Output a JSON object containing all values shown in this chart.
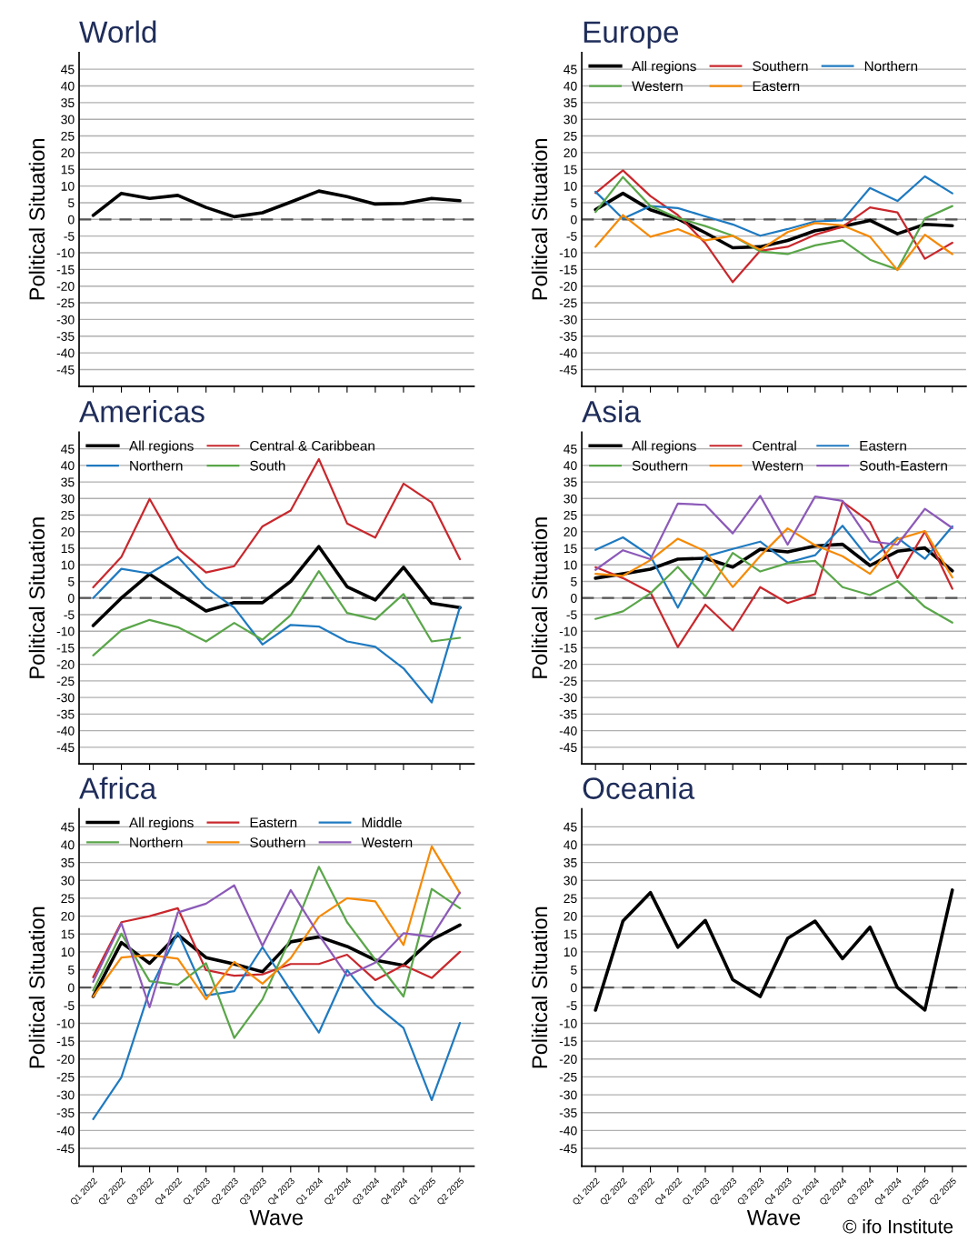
{
  "chart_data": [
    {
      "type": "line",
      "title": "World",
      "ylabel": "Political Situation",
      "categories": [
        null,
        null,
        null,
        null,
        null,
        null,
        null,
        null,
        null,
        null,
        null,
        null,
        null,
        null
      ],
      "ylim": [
        -50,
        50
      ],
      "yticks": [
        -45,
        -40,
        -35,
        -30,
        -25,
        -20,
        -15,
        -10,
        -5,
        0,
        5,
        10,
        15,
        20,
        25,
        30,
        35,
        40,
        45
      ],
      "grid": "y",
      "tick_labels": "y",
      "legend": false,
      "ref_lines": [
        {
          "axis": "y",
          "value": 0,
          "color": "#555555",
          "line_style": "dashed"
        }
      ],
      "series": [
        {
          "color": "#000000",
          "values": [
            1.2,
            7.8,
            6.3,
            7.2,
            3.6,
            0.8,
            2.0,
            5.2,
            8.5,
            6.8,
            4.6,
            4.8,
            6.3,
            5.6
          ]
        }
      ]
    },
    {
      "type": "line",
      "title": "Europe",
      "ylabel": "Political Situation",
      "categories": [
        null,
        null,
        null,
        null,
        null,
        null,
        null,
        null,
        null,
        null,
        null,
        null,
        null,
        null
      ],
      "ylim": [
        -50,
        50
      ],
      "yticks": [
        -45,
        -40,
        -35,
        -30,
        -25,
        -20,
        -15,
        -10,
        -5,
        0,
        5,
        10,
        15,
        20,
        25,
        30,
        35,
        40,
        45
      ],
      "grid": "y",
      "tick_labels": "y",
      "legend": "top left",
      "ref_lines": [
        {
          "axis": "y",
          "value": 0,
          "color": "#555555",
          "line_style": "dashed"
        }
      ],
      "series": [
        {
          "name": "All regions",
          "color": "#000000",
          "values": [
            2.9,
            7.8,
            2.9,
            0.2,
            -4.0,
            -8.5,
            -8.2,
            -6.3,
            -3.4,
            -2.1,
            -0.3,
            -4.3,
            -1.5,
            -1.9
          ]
        },
        {
          "name": "Southern",
          "color": "#c8282d",
          "values": [
            7.9,
            14.7,
            7.0,
            1.3,
            -7.1,
            -18.8,
            -9.4,
            -8.2,
            -4.6,
            -2.2,
            3.6,
            2.1,
            -11.8,
            -7.0
          ]
        },
        {
          "name": "Northern",
          "color": "#1f7ac0",
          "values": [
            8.3,
            0.2,
            4.0,
            3.4,
            0.9,
            -1.5,
            -4.9,
            -2.9,
            -0.6,
            -0.3,
            9.4,
            5.5,
            12.9,
            7.8
          ]
        },
        {
          "name": "Western",
          "color": "#5aa64a",
          "values": [
            2.2,
            12.7,
            4.0,
            0.4,
            -2.0,
            -4.9,
            -9.6,
            -10.4,
            -7.8,
            -6.3,
            -12.1,
            -15.0,
            0.3,
            4.0
          ]
        },
        {
          "name": "Eastern",
          "color": "#f58a07",
          "values": [
            -8.2,
            1.3,
            -5.2,
            -2.9,
            -6.3,
            -4.9,
            -9.1,
            -3.8,
            -1.1,
            -1.8,
            -5.2,
            -15.2,
            -4.6,
            -10.4
          ]
        }
      ]
    },
    {
      "type": "line",
      "title": "Americas",
      "ylabel": "Political Situation",
      "categories": [
        null,
        null,
        null,
        null,
        null,
        null,
        null,
        null,
        null,
        null,
        null,
        null,
        null,
        null
      ],
      "ylim": [
        -50,
        50
      ],
      "yticks": [
        -45,
        -40,
        -35,
        -30,
        -25,
        -20,
        -15,
        -10,
        -5,
        0,
        5,
        10,
        15,
        20,
        25,
        30,
        35,
        40,
        45
      ],
      "grid": "y",
      "tick_labels": "y",
      "legend": "top left",
      "ref_lines": [
        {
          "axis": "y",
          "value": 0,
          "color": "#555555",
          "line_style": "dashed"
        }
      ],
      "series": [
        {
          "name": "All regions",
          "color": "#000000",
          "values": [
            -8.3,
            0.0,
            7.2,
            1.6,
            -3.9,
            -1.4,
            -1.4,
            5.0,
            15.5,
            3.4,
            -0.6,
            9.3,
            -1.6,
            -2.9
          ]
        },
        {
          "name": "Central & Caribbean",
          "color": "#c8282d",
          "values": [
            3.2,
            12.4,
            29.9,
            14.9,
            7.7,
            9.6,
            21.6,
            26.4,
            41.9,
            22.5,
            18.2,
            34.5,
            28.8,
            11.7
          ]
        },
        {
          "name": "Northern",
          "color": "#1f7ac0",
          "values": [
            0.0,
            8.8,
            7.4,
            12.4,
            3.2,
            -2.9,
            -14.0,
            -8.1,
            -8.6,
            -13.1,
            -14.7,
            -21.2,
            -31.5,
            -2.7
          ]
        },
        {
          "name": "South",
          "color": "#5aa64a",
          "values": [
            -17.3,
            -9.7,
            -6.6,
            -8.8,
            -13.1,
            -7.5,
            -12.6,
            -5.2,
            8.1,
            -4.5,
            -6.5,
            1.2,
            -13.1,
            -12.0
          ]
        }
      ]
    },
    {
      "type": "line",
      "title": "Asia",
      "ylabel": "Political Situation",
      "categories": [
        null,
        null,
        null,
        null,
        null,
        null,
        null,
        null,
        null,
        null,
        null,
        null,
        null,
        null
      ],
      "ylim": [
        -50,
        50
      ],
      "yticks": [
        -45,
        -40,
        -35,
        -30,
        -25,
        -20,
        -15,
        -10,
        -5,
        0,
        5,
        10,
        15,
        20,
        25,
        30,
        35,
        40,
        45
      ],
      "grid": "y",
      "tick_labels": "y",
      "legend": "top left",
      "ref_lines": [
        {
          "axis": "y",
          "value": 0,
          "color": "#555555",
          "line_style": "dashed"
        }
      ],
      "series": [
        {
          "name": "All regions",
          "color": "#000000",
          "values": [
            6.0,
            7.3,
            8.7,
            11.7,
            12.0,
            9.3,
            14.7,
            13.9,
            15.7,
            16.2,
            9.8,
            14.1,
            15.1,
            8.2
          ]
        },
        {
          "name": "Central",
          "color": "#c8282d",
          "values": [
            9.3,
            6.0,
            1.7,
            -14.8,
            -2.0,
            -9.8,
            3.3,
            -1.5,
            1.2,
            29.0,
            22.9,
            6.0,
            20.0,
            2.8
          ]
        },
        {
          "name": "Eastern",
          "color": "#1f7ac0",
          "values": [
            14.5,
            18.3,
            12.7,
            -2.9,
            12.5,
            14.8,
            17.0,
            10.7,
            12.9,
            21.8,
            11.4,
            18.2,
            11.8,
            21.6
          ]
        },
        {
          "name": "Southern",
          "color": "#5aa64a",
          "values": [
            -6.3,
            -4.0,
            1.4,
            9.4,
            0.4,
            13.6,
            8.0,
            10.5,
            11.2,
            3.3,
            0.9,
            5.1,
            -2.7,
            -7.4
          ]
        },
        {
          "name": "Western",
          "color": "#f58a07",
          "values": [
            7.3,
            6.7,
            11.4,
            17.9,
            14.1,
            3.3,
            12.7,
            21.0,
            15.9,
            12.6,
            7.3,
            17.7,
            20.2,
            6.2
          ]
        },
        {
          "name": "South-Eastern",
          "color": "#8c5ab8",
          "values": [
            8.5,
            14.4,
            11.7,
            28.5,
            28.1,
            19.5,
            30.8,
            16.1,
            30.6,
            29.3,
            17.1,
            16.1,
            26.9,
            21.1
          ]
        }
      ]
    },
    {
      "type": "line",
      "title": "Africa",
      "ylabel": "Political Situation",
      "xlabel": "Wave",
      "categories": [
        "Q1 2022",
        "Q2 2022",
        "Q3 2022",
        "Q4 2022",
        "Q1 2023",
        "Q2 2023",
        "Q3 2023",
        "Q4 2023",
        "Q1 2024",
        "Q2 2024",
        "Q3 2024",
        "Q4 2024",
        "Q1 2025",
        "Q2 2025"
      ],
      "ylim": [
        -50,
        50
      ],
      "yticks": [
        -45,
        -40,
        -35,
        -30,
        -25,
        -20,
        -15,
        -10,
        -5,
        0,
        5,
        10,
        15,
        20,
        25,
        30,
        35,
        40,
        45
      ],
      "grid": "y",
      "legend": "top left",
      "ref_lines": [
        {
          "axis": "y",
          "value": 0,
          "color": "#555555",
          "line_style": "dashed"
        }
      ],
      "series": [
        {
          "name": "All regions",
          "color": "#000000",
          "values": [
            -2.5,
            12.6,
            6.8,
            14.8,
            8.4,
            6.6,
            4.4,
            12.8,
            14.2,
            11.5,
            7.7,
            6.2,
            13.4,
            17.5
          ]
        },
        {
          "name": "Eastern",
          "color": "#c8282d",
          "values": [
            2.9,
            18.3,
            20.0,
            22.2,
            4.9,
            3.3,
            3.7,
            6.6,
            6.6,
            9.2,
            2.1,
            6.3,
            2.7,
            10.0
          ]
        },
        {
          "name": "Middle",
          "color": "#1f7ac0",
          "values": [
            -36.8,
            -25.1,
            -0.8,
            15.4,
            -2.2,
            -1.0,
            11.3,
            -0.8,
            -12.6,
            4.9,
            -4.8,
            -11.3,
            -31.5,
            -9.9
          ]
        },
        {
          "name": "Northern",
          "color": "#5aa64a",
          "values": [
            -0.8,
            15.1,
            1.8,
            0.8,
            6.8,
            -14.1,
            -3.3,
            14.0,
            33.8,
            18.3,
            7.8,
            -2.5,
            27.6,
            22.2
          ]
        },
        {
          "name": "Southern",
          "color": "#f58a07",
          "values": [
            -2.5,
            8.4,
            9.1,
            8.1,
            -3.3,
            7.2,
            1.1,
            8.2,
            19.8,
            25.0,
            24.1,
            11.9,
            39.5,
            26.4
          ]
        },
        {
          "name": "Western",
          "color": "#8c5ab8",
          "values": [
            1.6,
            18.0,
            -5.5,
            21.0,
            23.5,
            28.6,
            11.7,
            27.3,
            14.8,
            3.3,
            7.0,
            15.2,
            14.2,
            26.6
          ]
        }
      ]
    },
    {
      "type": "line",
      "title": "Oceania",
      "ylabel": "Political Situation",
      "xlabel": "Wave",
      "categories": [
        "Q1 2022",
        "Q2 2022",
        "Q3 2022",
        "Q4 2022",
        "Q1 2023",
        "Q2 2023",
        "Q3 2023",
        "Q4 2023",
        "Q1 2024",
        "Q2 2024",
        "Q3 2024",
        "Q4 2024",
        "Q1 2025",
        "Q2 2025"
      ],
      "ylim": [
        -50,
        50
      ],
      "yticks": [
        -45,
        -40,
        -35,
        -30,
        -25,
        -20,
        -15,
        -10,
        -5,
        0,
        5,
        10,
        15,
        20,
        25,
        30,
        35,
        40,
        45
      ],
      "grid": "y",
      "legend": false,
      "ref_lines": [
        {
          "axis": "y",
          "value": 0,
          "color": "#555555",
          "line_style": "dashed"
        }
      ],
      "annotations": [
        "© ifo Institute"
      ],
      "series": [
        {
          "color": "#000000",
          "values": [
            -6.3,
            18.6,
            26.6,
            11.3,
            18.8,
            2.2,
            -2.5,
            13.8,
            18.6,
            8.1,
            16.9,
            0.0,
            -6.3,
            27.3
          ]
        }
      ]
    }
  ]
}
